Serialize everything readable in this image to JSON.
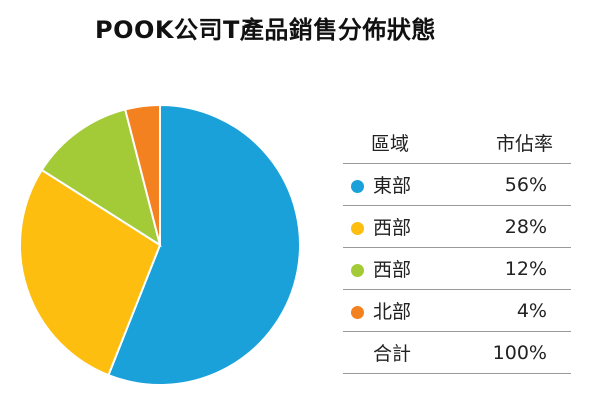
{
  "chart_data": {
    "type": "pie",
    "title": "POOK公司T產品銷售分佈狀態",
    "series": [
      {
        "name": "東部",
        "value": 56,
        "label": "56%",
        "color": "#1BA1DA"
      },
      {
        "name": "西部",
        "value": 28,
        "label": "28%",
        "color": "#FDBE10"
      },
      {
        "name": "西部",
        "value": 12,
        "label": "12%",
        "color": "#A3CB38"
      },
      {
        "name": "北部",
        "value": 4,
        "label": "4%",
        "color": "#F48120"
      }
    ],
    "table": {
      "header_region": "區域",
      "header_share": "市佔率",
      "total_label": "合計",
      "total_value": "100%"
    }
  }
}
